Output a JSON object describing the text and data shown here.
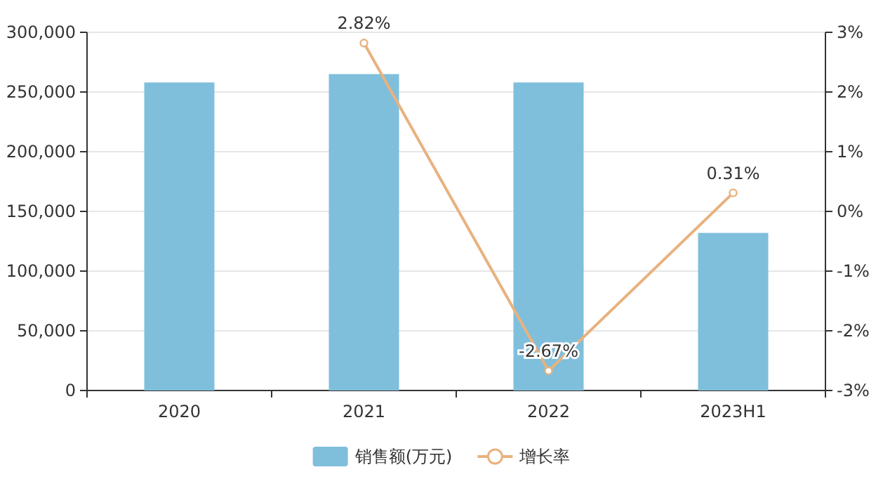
{
  "chart_data": {
    "type": "bar",
    "categories": [
      "2020",
      "2021",
      "2022",
      "2023H1"
    ],
    "series": [
      {
        "name": "销售额(万元)",
        "color": "#7fbfdc",
        "values": [
          258000,
          265000,
          258000,
          132000
        ]
      },
      {
        "name": "增长率",
        "type": "line",
        "axis": "y2",
        "color": "#e8b27f",
        "values": [
          null,
          2.82,
          -2.67,
          0.31
        ],
        "value_labels": [
          null,
          "2.82%",
          "-2.67%",
          "0.31%"
        ]
      }
    ],
    "ylim": [
      0,
      300000
    ],
    "yticks": [
      {
        "value": 0,
        "label": "0"
      },
      {
        "value": 50000,
        "label": "50,000"
      },
      {
        "value": 100000,
        "label": "100,000"
      },
      {
        "value": 150000,
        "label": "150,000"
      },
      {
        "value": 200000,
        "label": "200,000"
      },
      {
        "value": 250000,
        "label": "250,000"
      },
      {
        "value": 300000,
        "label": "300,000"
      }
    ],
    "y2lim": [
      -3,
      3
    ],
    "y2ticks": [
      {
        "value": -3,
        "label": "-3%"
      },
      {
        "value": -2,
        "label": "-2%"
      },
      {
        "value": -1,
        "label": "-1%"
      },
      {
        "value": 0,
        "label": "0%"
      },
      {
        "value": 1,
        "label": "1%"
      },
      {
        "value": 2,
        "label": "2%"
      },
      {
        "value": 3,
        "label": "3%"
      }
    ],
    "grid": "y",
    "legend": "bottom",
    "marker": "circle"
  }
}
